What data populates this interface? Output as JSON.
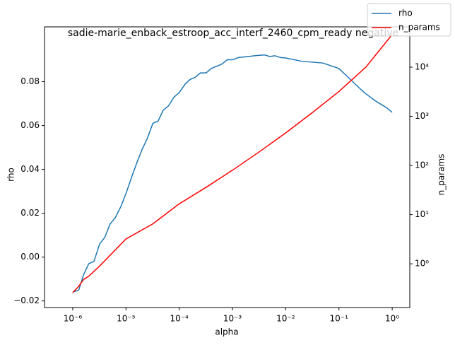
{
  "chart_data": {
    "type": "line",
    "title": "sadie-marie_enback_estroop_acc_interf_2460_cpm_ready negative",
    "xlabel": "alpha",
    "ylabel": "rho",
    "y2label": "n_params",
    "xscale": "log",
    "y2scale": "log",
    "legend": "upper right",
    "xlim": [
      2.95e-07,
      2.14
    ],
    "xticks": [
      {
        "value": 1e-06,
        "label": "10⁻⁶"
      },
      {
        "value": 1e-05,
        "label": "10⁻⁵"
      },
      {
        "value": 0.0001,
        "label": "10⁻⁴"
      },
      {
        "value": 0.001,
        "label": "10⁻³"
      },
      {
        "value": 0.01,
        "label": "10⁻²"
      },
      {
        "value": 0.1,
        "label": "10⁻¹"
      },
      {
        "value": 1,
        "label": "10⁰"
      }
    ],
    "ylim": [
      -0.023,
      0.105
    ],
    "yticks": [
      {
        "value": -0.02,
        "label": "−0.02"
      },
      {
        "value": 0,
        "label": "0.00"
      },
      0.02,
      0.04,
      0.06,
      0.08
    ],
    "y2lim": [
      0.129,
      66000
    ],
    "y2ticks": [
      {
        "value": 1,
        "label": "10⁰"
      },
      {
        "value": 10,
        "label": "10¹"
      },
      {
        "value": 100,
        "label": "10²"
      },
      {
        "value": 1000,
        "label": "10³"
      },
      {
        "value": 10000,
        "label": "10⁴"
      }
    ],
    "series": [
      {
        "name": "rho",
        "color": "#1f77b4",
        "x": [
          1e-06,
          1.3e-06,
          1.6e-06,
          2e-06,
          2.5e-06,
          3.2e-06,
          4e-06,
          5e-06,
          6.3e-06,
          8e-06,
          1e-05,
          1.3e-05,
          1.6e-05,
          2e-05,
          2.5e-05,
          3.2e-05,
          4e-05,
          5e-05,
          6.3e-05,
          8e-05,
          0.0001,
          0.00013,
          0.00016,
          0.0002,
          0.00025,
          0.00032,
          0.0004,
          0.0005,
          0.00063,
          0.0008,
          0.001,
          0.0013,
          0.002,
          0.003,
          0.004,
          0.005,
          0.0063,
          0.008,
          0.01,
          0.02,
          0.05,
          0.1,
          0.2,
          0.3,
          0.5,
          0.8,
          1
        ],
        "values": [
          -0.016,
          -0.015,
          -0.008,
          -0.003,
          -0.002,
          0.006,
          0.009,
          0.015,
          0.018,
          0.023,
          0.029,
          0.037,
          0.043,
          0.049,
          0.054,
          0.061,
          0.062,
          0.067,
          0.069,
          0.073,
          0.075,
          0.079,
          0.081,
          0.082,
          0.084,
          0.084,
          0.086,
          0.087,
          0.088,
          0.09,
          0.09,
          0.091,
          0.0915,
          0.092,
          0.0922,
          0.0915,
          0.0918,
          0.091,
          0.0908,
          0.0893,
          0.0885,
          0.086,
          0.079,
          0.075,
          0.071,
          0.068,
          0.066
        ]
      },
      {
        "name": "n_params",
        "color": "#ff0000",
        "axis": "y2",
        "x": [
          1e-06,
          1.3e-06,
          1.6e-06,
          2e-06,
          2.5e-06,
          3.2e-06,
          1e-05,
          3.2e-05,
          0.0001,
          0.00032,
          0.001,
          0.0032,
          0.01,
          0.032,
          0.1,
          0.32,
          1
        ],
        "values": [
          0.26,
          0.35,
          0.48,
          0.56,
          0.7,
          0.9,
          3.2,
          6.5,
          16.6,
          36,
          80,
          190,
          460,
          1200,
          3200,
          10000,
          46000
        ]
      }
    ]
  }
}
